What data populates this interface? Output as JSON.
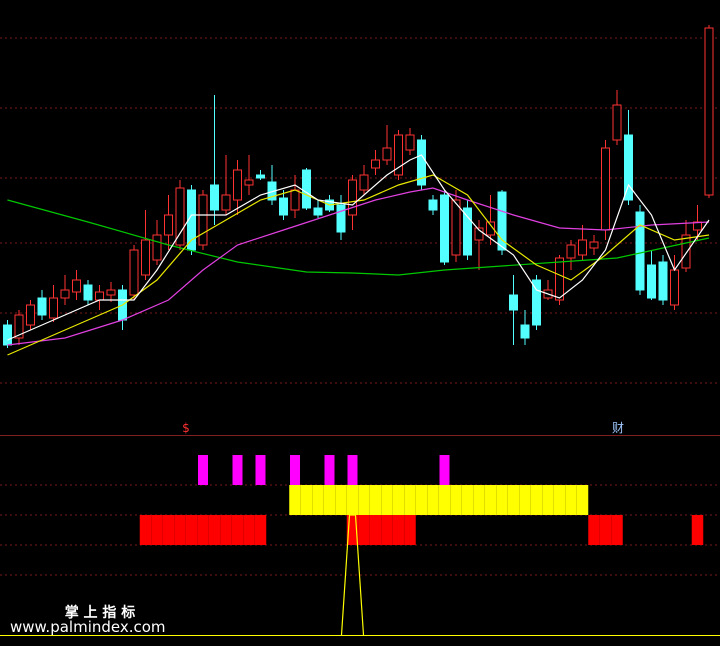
{
  "chart_data": {
    "type": "candlestick",
    "ylim": [
      0,
      100
    ],
    "up_color": "#ff3232",
    "down_color": "#54ffff",
    "candles": [
      [
        18.75,
        20,
        13,
        13.75
      ],
      [
        15.5,
        22.5,
        13.75,
        21.25
      ],
      [
        18.75,
        25,
        17.5,
        23.75
      ],
      [
        25.5,
        27.5,
        20,
        21.25
      ],
      [
        20.5,
        28.75,
        19.5,
        25.5
      ],
      [
        25.5,
        31.25,
        23.75,
        27.5
      ],
      [
        27,
        32.5,
        25,
        30
      ],
      [
        28.75,
        30,
        23.75,
        25
      ],
      [
        25,
        28.75,
        22.5,
        27
      ],
      [
        26.25,
        29.5,
        24.5,
        27.5
      ],
      [
        27.5,
        28.75,
        17.5,
        20
      ],
      [
        26.25,
        38.75,
        25,
        37.5
      ],
      [
        31.25,
        47.5,
        30,
        40
      ],
      [
        35,
        45,
        33.75,
        41.25
      ],
      [
        41.25,
        51.25,
        37.5,
        46.25
      ],
      [
        38.75,
        55,
        37.5,
        53
      ],
      [
        52.5,
        53.75,
        36.25,
        37.5
      ],
      [
        38.75,
        52.5,
        37.5,
        51.25
      ],
      [
        53.75,
        76.25,
        43.75,
        47.5
      ],
      [
        47.5,
        61.25,
        46.25,
        51.25
      ],
      [
        50,
        60,
        46.25,
        57.5
      ],
      [
        53.75,
        61.25,
        51.25,
        55
      ],
      [
        56.25,
        57.5,
        55,
        55.5
      ],
      [
        54.5,
        58.75,
        48.75,
        50
      ],
      [
        50.5,
        52.5,
        45,
        46.25
      ],
      [
        47.5,
        56.25,
        45.5,
        52.5
      ],
      [
        57.5,
        58,
        47.5,
        48
      ],
      [
        48,
        50,
        45.5,
        46.25
      ],
      [
        50,
        51.25,
        47,
        47.5
      ],
      [
        48.75,
        51.25,
        40,
        42
      ],
      [
        46.25,
        56.25,
        42.5,
        55
      ],
      [
        52.5,
        58.75,
        51.25,
        56.25
      ],
      [
        58,
        62.5,
        56.25,
        60
      ],
      [
        60,
        68.75,
        58.75,
        63
      ],
      [
        56.25,
        67.5,
        55,
        66.25
      ],
      [
        62.5,
        68,
        61.25,
        66.25
      ],
      [
        65,
        66.25,
        52.5,
        53.75
      ],
      [
        50,
        51.25,
        46.25,
        47.5
      ],
      [
        51.25,
        52.5,
        33.75,
        34.5
      ],
      [
        36.25,
        52.5,
        34.5,
        50
      ],
      [
        48,
        50,
        35,
        36.25
      ],
      [
        40,
        45,
        32.5,
        43
      ],
      [
        41.25,
        51.25,
        38.75,
        44.5
      ],
      [
        52,
        52.5,
        36.25,
        37.5
      ],
      [
        26.25,
        31.25,
        13.75,
        22.5
      ],
      [
        18.75,
        22.5,
        13.75,
        15.5
      ],
      [
        30,
        31.25,
        17.5,
        18.75
      ],
      [
        25.5,
        30,
        25,
        27.5
      ],
      [
        25,
        36.25,
        23.75,
        35.5
      ],
      [
        35.5,
        40,
        32.5,
        38.75
      ],
      [
        36.25,
        43.75,
        35,
        40
      ],
      [
        38,
        41.25,
        36.25,
        39.5
      ],
      [
        42.5,
        65,
        40,
        63
      ],
      [
        65,
        77.5,
        63.75,
        73.75
      ],
      [
        66.25,
        72.5,
        48.75,
        50
      ],
      [
        47,
        48.75,
        26.25,
        27.5
      ],
      [
        33.75,
        37.5,
        25,
        25.5
      ],
      [
        34.5,
        36.25,
        23.75,
        25
      ],
      [
        23.75,
        36.25,
        22.5,
        32.5
      ],
      [
        33,
        45,
        32,
        41.25
      ],
      [
        42.5,
        48.75,
        40,
        44.5
      ],
      [
        51.25,
        93.75,
        50.5,
        93
      ]
    ],
    "lines": [
      {
        "color": "#00c800",
        "x": [
          0,
          7,
          14,
          20,
          26,
          30,
          34,
          38,
          43,
          48,
          53,
          57,
          61
        ],
        "values": [
          50,
          44.5,
          38.75,
          34.5,
          32,
          31.75,
          31.25,
          32.5,
          33.5,
          34.5,
          35.5,
          38,
          40.5
        ]
      },
      {
        "color": "#e040e0",
        "x": [
          0,
          5,
          10,
          14,
          17,
          20,
          24,
          28,
          32,
          35,
          37,
          40,
          44,
          48,
          52,
          56,
          61
        ],
        "values": [
          13.75,
          15.5,
          20,
          25,
          32.5,
          38.75,
          42.5,
          46.25,
          50,
          52,
          53,
          50,
          46.25,
          43,
          42.5,
          43.75,
          44.5
        ]
      },
      {
        "color": "#e8e800",
        "x": [
          0,
          5,
          10,
          13,
          16,
          19,
          22,
          25,
          28,
          31,
          34,
          37,
          40,
          43,
          46,
          49,
          52,
          55,
          58,
          61
        ],
        "values": [
          11.25,
          17.5,
          23.75,
          30,
          40,
          45,
          50,
          52.5,
          48.75,
          50,
          53.75,
          56.25,
          51.25,
          40,
          33.75,
          30,
          36.25,
          43.75,
          40,
          41.25
        ]
      },
      {
        "color": "#ffffff",
        "x": [
          0,
          4,
          8,
          11,
          13,
          16,
          19,
          22,
          25,
          27,
          30,
          33,
          35,
          36,
          38,
          41,
          44,
          46,
          48,
          50,
          52,
          54,
          56,
          58,
          61
        ],
        "values": [
          15,
          20,
          25,
          25,
          32.5,
          46.25,
          46.25,
          51.25,
          53.75,
          50,
          48.75,
          56.25,
          60,
          61.25,
          52.5,
          42.5,
          36.25,
          27.5,
          25.5,
          30,
          37.5,
          53.75,
          46.25,
          32.5,
          45
        ]
      }
    ],
    "signals": [
      {
        "color": "#ff00ff",
        "x": [
          17,
          20,
          22,
          25,
          28,
          30,
          38
        ]
      },
      {
        "color": "#ffff00",
        "x": [
          25,
          26,
          27,
          28,
          29,
          30,
          31,
          32,
          33,
          34,
          35,
          36,
          37,
          38,
          39,
          40,
          41,
          42,
          43,
          44,
          45,
          46,
          47,
          48,
          49,
          50
        ]
      },
      {
        "color": "#ff0000",
        "x": [
          12,
          13,
          14,
          15,
          16,
          17,
          18,
          19,
          20,
          21,
          22,
          30,
          31,
          32,
          33,
          34,
          35,
          51,
          52,
          53,
          60
        ]
      }
    ],
    "spike": {
      "color": "#ffff00",
      "x": [
        30
      ]
    }
  },
  "annotations": [
    "$",
    "财"
  ],
  "watermark": {
    "title": "掌 上 指 标",
    "url": "www.palmindex.com"
  }
}
